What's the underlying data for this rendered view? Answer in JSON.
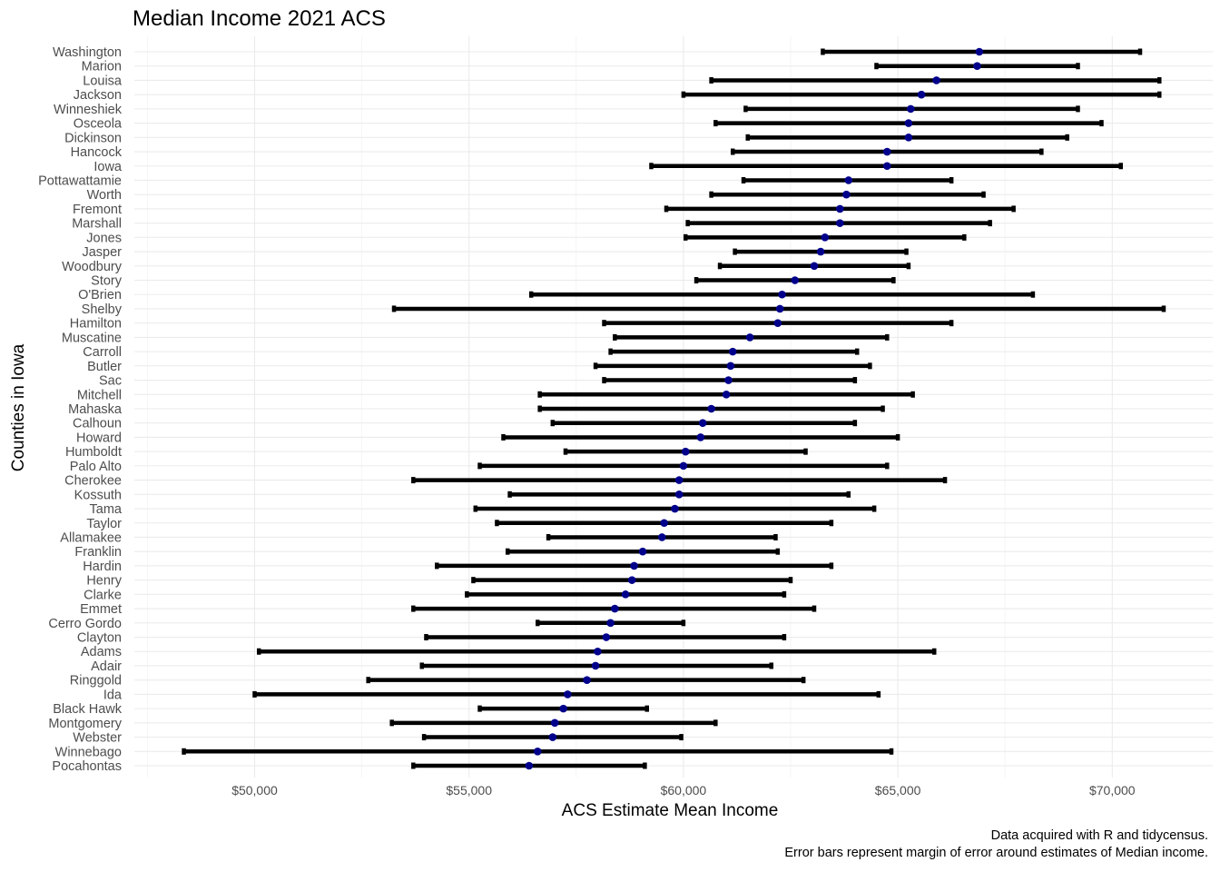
{
  "chart_data": {
    "type": "scatter",
    "title": "Median Income 2021 ACS",
    "xlabel": "ACS Estimate Mean Income",
    "ylabel": "Counties in Iowa",
    "caption": [
      "Data acquired with R and tidycensus.",
      "Error bars represent margin of error around estimates of Median income."
    ],
    "xlim": [
      47400,
      71600
    ],
    "x_ticks": [
      50000,
      55000,
      60000,
      65000,
      70000
    ],
    "x_tick_labels": [
      "$50,000",
      "$55,000",
      "$60,000",
      "$65,000",
      "$70,000"
    ],
    "grid": true,
    "error_bars": true,
    "point_color": "#00008b",
    "bar_color": "#000000",
    "counties": [
      {
        "name": "Washington",
        "estimate": 66900,
        "low": 63250,
        "high": 70650
      },
      {
        "name": "Marion",
        "estimate": 66850,
        "low": 64500,
        "high": 69200
      },
      {
        "name": "Louisa",
        "estimate": 65900,
        "low": 60650,
        "high": 71100
      },
      {
        "name": "Jackson",
        "estimate": 65550,
        "low": 60000,
        "high": 71100
      },
      {
        "name": "Winneshiek",
        "estimate": 65300,
        "low": 61450,
        "high": 69200
      },
      {
        "name": "Osceola",
        "estimate": 65250,
        "low": 60750,
        "high": 69750
      },
      {
        "name": "Dickinson",
        "estimate": 65250,
        "low": 61500,
        "high": 68950
      },
      {
        "name": "Hancock",
        "estimate": 64750,
        "low": 61150,
        "high": 68350
      },
      {
        "name": "Iowa",
        "estimate": 64750,
        "low": 59250,
        "high": 70200
      },
      {
        "name": "Pottawattamie",
        "estimate": 63850,
        "low": 61400,
        "high": 66250
      },
      {
        "name": "Worth",
        "estimate": 63800,
        "low": 60650,
        "high": 67000
      },
      {
        "name": "Fremont",
        "estimate": 63650,
        "low": 59600,
        "high": 67700
      },
      {
        "name": "Marshall",
        "estimate": 63650,
        "low": 60100,
        "high": 67150
      },
      {
        "name": "Jones",
        "estimate": 63300,
        "low": 60050,
        "high": 66550
      },
      {
        "name": "Jasper",
        "estimate": 63200,
        "low": 61200,
        "high": 65200
      },
      {
        "name": "Woodbury",
        "estimate": 63050,
        "low": 60850,
        "high": 65250
      },
      {
        "name": "Story",
        "estimate": 62600,
        "low": 60300,
        "high": 64900
      },
      {
        "name": "O'Brien",
        "estimate": 62300,
        "low": 56450,
        "high": 68150
      },
      {
        "name": "Shelby",
        "estimate": 62250,
        "low": 53250,
        "high": 71200
      },
      {
        "name": "Hamilton",
        "estimate": 62200,
        "low": 58150,
        "high": 66250
      },
      {
        "name": "Muscatine",
        "estimate": 61550,
        "low": 58400,
        "high": 64750
      },
      {
        "name": "Carroll",
        "estimate": 61150,
        "low": 58300,
        "high": 64050
      },
      {
        "name": "Butler",
        "estimate": 61100,
        "low": 57950,
        "high": 64350
      },
      {
        "name": "Sac",
        "estimate": 61050,
        "low": 58150,
        "high": 64000
      },
      {
        "name": "Mitchell",
        "estimate": 61000,
        "low": 56650,
        "high": 65350
      },
      {
        "name": "Mahaska",
        "estimate": 60650,
        "low": 56650,
        "high": 64650
      },
      {
        "name": "Calhoun",
        "estimate": 60450,
        "low": 56950,
        "high": 64000
      },
      {
        "name": "Howard",
        "estimate": 60400,
        "low": 55800,
        "high": 65000
      },
      {
        "name": "Humboldt",
        "estimate": 60050,
        "low": 57250,
        "high": 62850
      },
      {
        "name": "Palo Alto",
        "estimate": 60000,
        "low": 55250,
        "high": 64750
      },
      {
        "name": "Cherokee",
        "estimate": 59900,
        "low": 53700,
        "high": 66100
      },
      {
        "name": "Kossuth",
        "estimate": 59900,
        "low": 55950,
        "high": 63850
      },
      {
        "name": "Tama",
        "estimate": 59800,
        "low": 55150,
        "high": 64450
      },
      {
        "name": "Taylor",
        "estimate": 59550,
        "low": 55650,
        "high": 63450
      },
      {
        "name": "Allamakee",
        "estimate": 59500,
        "low": 56850,
        "high": 62150
      },
      {
        "name": "Franklin",
        "estimate": 59050,
        "low": 55900,
        "high": 62200
      },
      {
        "name": "Hardin",
        "estimate": 58850,
        "low": 54250,
        "high": 63450
      },
      {
        "name": "Henry",
        "estimate": 58800,
        "low": 55100,
        "high": 62500
      },
      {
        "name": "Clarke",
        "estimate": 58650,
        "low": 54950,
        "high": 62350
      },
      {
        "name": "Emmet",
        "estimate": 58400,
        "low": 53700,
        "high": 63050
      },
      {
        "name": "Cerro Gordo",
        "estimate": 58300,
        "low": 56600,
        "high": 60000
      },
      {
        "name": "Clayton",
        "estimate": 58200,
        "low": 54000,
        "high": 62350
      },
      {
        "name": "Adams",
        "estimate": 58000,
        "low": 50100,
        "high": 65850
      },
      {
        "name": "Adair",
        "estimate": 57950,
        "low": 53900,
        "high": 62050
      },
      {
        "name": "Ringgold",
        "estimate": 57750,
        "low": 52650,
        "high": 62800
      },
      {
        "name": "Ida",
        "estimate": 57300,
        "low": 50000,
        "high": 64550
      },
      {
        "name": "Black Hawk",
        "estimate": 57200,
        "low": 55250,
        "high": 59150
      },
      {
        "name": "Montgomery",
        "estimate": 57000,
        "low": 53200,
        "high": 60750
      },
      {
        "name": "Webster",
        "estimate": 56950,
        "low": 53950,
        "high": 59950
      },
      {
        "name": "Winnebago",
        "estimate": 56600,
        "low": 48350,
        "high": 64850
      },
      {
        "name": "Pocahontas",
        "estimate": 56400,
        "low": 53700,
        "high": 59100
      }
    ]
  }
}
